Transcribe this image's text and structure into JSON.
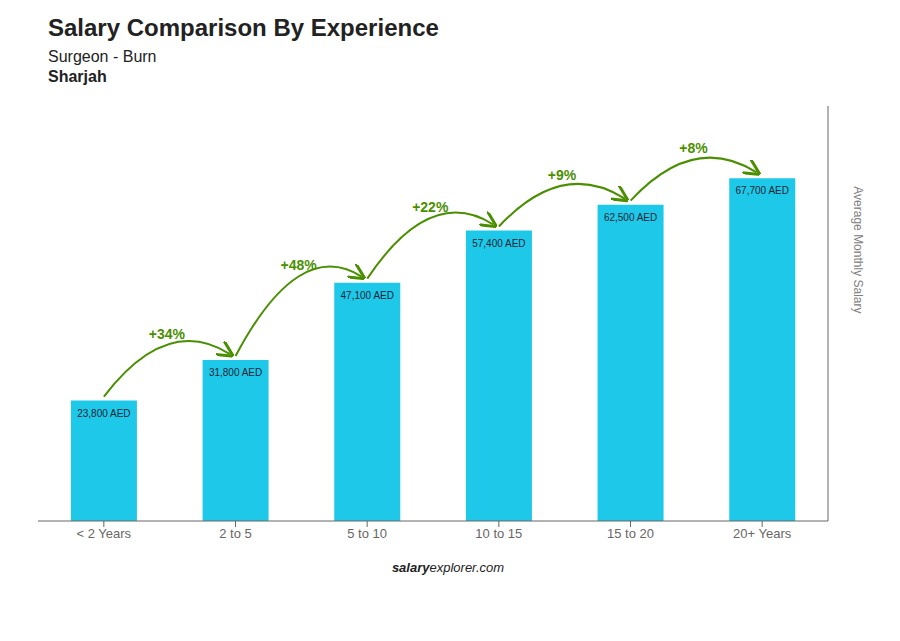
{
  "chart_data": {
    "type": "bar",
    "title": "Salary Comparison By Experience",
    "subtitle": "Surgeon - Burn",
    "ylabel": "Average Monthly Salary",
    "annotations": [
      "Sharjah",
      "+34%",
      "+48%",
      "+22%",
      "+9%",
      "+8%",
      "salary",
      "explorer.com"
    ],
    "categories": [
      "< 2 Years",
      "2 to 5",
      "5 to 10",
      "10 to 15",
      "15 to 20",
      "20+ Years"
    ],
    "values": [
      23800,
      31800,
      47100,
      57400,
      62500,
      67700
    ],
    "value_labels": [
      "23,800 AED",
      "31,800 AED",
      "47,100 AED",
      "57,400 AED",
      "62,500 AED",
      "67,700 AED"
    ],
    "data_labels": true,
    "color": "#1EC8E8",
    "ylim": [
      0,
      82000
    ],
    "yticks": [],
    "grid": false,
    "tick_labels": "x"
  }
}
